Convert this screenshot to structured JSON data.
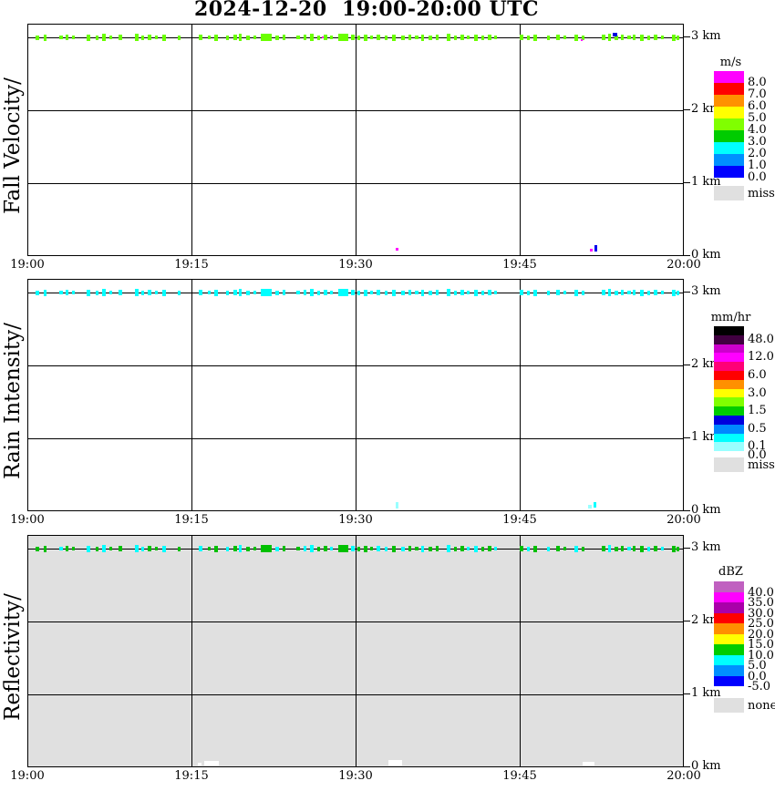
{
  "title": "2024-12-20  19:00-20:00 UTC",
  "axes": {
    "time_ticks": [
      "19:00",
      "19:15",
      "19:30",
      "19:45",
      "20:00"
    ],
    "height_ticks": [
      "3 km",
      "2 km",
      "1 km",
      "0 km"
    ]
  },
  "echo_events": {
    "description": "Intermittent echo marks drawn on the 3 km height line of every panel; format [x_px_from_plot_left, width_px, height_px]; plot width 720 px spans 19:00-20:00 UTC",
    "items": [
      [
        8,
        4,
        5
      ],
      [
        17,
        3,
        7
      ],
      [
        34,
        4,
        4
      ],
      [
        41,
        3,
        6
      ],
      [
        48,
        3,
        4
      ],
      [
        64,
        4,
        7
      ],
      [
        74,
        3,
        5
      ],
      [
        81,
        4,
        8
      ],
      [
        89,
        3,
        4
      ],
      [
        99,
        4,
        6
      ],
      [
        117,
        4,
        8
      ],
      [
        124,
        3,
        5
      ],
      [
        131,
        4,
        6
      ],
      [
        139,
        3,
        4
      ],
      [
        147,
        4,
        7
      ],
      [
        164,
        3,
        5
      ],
      [
        187,
        4,
        6
      ],
      [
        197,
        3,
        4
      ],
      [
        204,
        4,
        7
      ],
      [
        217,
        3,
        5
      ],
      [
        225,
        4,
        6
      ],
      [
        231,
        3,
        8
      ],
      [
        239,
        4,
        5
      ],
      [
        247,
        3,
        4
      ],
      [
        255,
        12,
        8
      ],
      [
        271,
        4,
        5
      ],
      [
        279,
        3,
        6
      ],
      [
        294,
        4,
        4
      ],
      [
        302,
        3,
        6
      ],
      [
        309,
        4,
        8
      ],
      [
        317,
        3,
        5
      ],
      [
        324,
        4,
        6
      ],
      [
        331,
        3,
        4
      ],
      [
        340,
        11,
        8
      ],
      [
        354,
        4,
        6
      ],
      [
        361,
        3,
        5
      ],
      [
        368,
        4,
        7
      ],
      [
        375,
        3,
        4
      ],
      [
        382,
        4,
        6
      ],
      [
        391,
        3,
        5
      ],
      [
        399,
        4,
        7
      ],
      [
        409,
        4,
        5
      ],
      [
        417,
        3,
        6
      ],
      [
        424,
        4,
        4
      ],
      [
        431,
        3,
        7
      ],
      [
        439,
        4,
        5
      ],
      [
        447,
        3,
        6
      ],
      [
        459,
        4,
        8
      ],
      [
        467,
        3,
        5
      ],
      [
        474,
        4,
        6
      ],
      [
        481,
        3,
        4
      ],
      [
        489,
        4,
        7
      ],
      [
        497,
        3,
        5
      ],
      [
        504,
        4,
        6
      ],
      [
        511,
        3,
        4
      ],
      [
        539,
        4,
        6
      ],
      [
        547,
        3,
        5
      ],
      [
        554,
        4,
        7
      ],
      [
        569,
        3,
        5
      ],
      [
        579,
        4,
        6
      ],
      [
        587,
        3,
        4
      ],
      [
        599,
        4,
        7
      ],
      [
        607,
        3,
        5
      ],
      [
        629,
        4,
        6
      ],
      [
        636,
        3,
        8
      ],
      [
        643,
        4,
        5
      ],
      [
        650,
        3,
        6
      ],
      [
        657,
        4,
        4
      ],
      [
        663,
        3,
        6
      ],
      [
        671,
        4,
        7
      ],
      [
        679,
        3,
        5
      ],
      [
        686,
        4,
        6
      ],
      [
        694,
        3,
        4
      ],
      [
        706,
        4,
        7
      ],
      [
        711,
        3,
        5
      ]
    ]
  },
  "chart_data": [
    {
      "type": "heatmap",
      "title": "Fall Velocity",
      "ylabel_text": "Fall Velocity/",
      "unit": "m/s",
      "background": "#ffffff",
      "x_range": [
        "19:00",
        "20:00"
      ],
      "y_range_km": [
        0,
        3.2
      ],
      "data_summary": "Scattered intermittent echoes only at the 3 km level, fall velocity ~4-5 m/s (yellow-green); one blue (~1 m/s) and two magenta pixels; isolated magenta/blue pixels near 0 km at ~19:33 and ~19:51; everything else missing",
      "echo_color": "#6aff00",
      "events_ref": "echo_events",
      "extra_specks": [
        [
          322,
          2,
          2,
          0,
          "#ff00ff"
        ],
        [
          606,
          2,
          2,
          3,
          "#ff00ff"
        ],
        [
          641,
          5,
          4,
          -3,
          "#0000dd"
        ]
      ],
      "bottom_specks": [
        [
          403,
          3,
          3,
          245,
          "#ff00ff"
        ],
        [
          616,
          3,
          3,
          246,
          "#ff00ff"
        ],
        [
          621,
          3,
          7,
          242,
          "#0000ee"
        ]
      ],
      "colorbar": {
        "unit": "m/s",
        "segments": [
          {
            "color": "#ff00ff",
            "label": "8.0"
          },
          {
            "color": "#ff0000",
            "label": "7.0"
          },
          {
            "color": "#ff9000",
            "label": "6.0"
          },
          {
            "color": "#ffff00",
            "label": "5.0"
          },
          {
            "color": "#80ff00",
            "label": "4.0"
          },
          {
            "color": "#00cc00",
            "label": "3.0"
          },
          {
            "color": "#00ffff",
            "label": "2.0"
          },
          {
            "color": "#0090ff",
            "label": "1.0"
          },
          {
            "color": "#0000ff",
            "label": "0.0"
          }
        ],
        "footer": {
          "label": "miss",
          "color": "#e0e0e0"
        }
      }
    },
    {
      "type": "heatmap",
      "title": "Rain Intensity",
      "ylabel_text": "Rain Intensity/",
      "unit": "mm/hr",
      "background": "#ffffff",
      "x_range": [
        "19:00",
        "20:00"
      ],
      "y_range_km": [
        0,
        3.2
      ],
      "data_summary": "Same intermittent echoes at 3 km, rain intensity ~0.1-0.5 mm/hr (cyan); faint pale-cyan pixels near 0 km at ~19:33 and ~19:51; everything else missing",
      "echo_color": "#00ffff",
      "events_ref": "echo_events",
      "extra_specks": [],
      "bottom_specks": [
        [
          403,
          3,
          7,
          244,
          "#99ffff"
        ],
        [
          614,
          4,
          4,
          247,
          "#99ffff"
        ],
        [
          620,
          3,
          6,
          244,
          "#00ffff"
        ]
      ],
      "colorbar": {
        "unit": "mm/hr",
        "segments": [
          {
            "color": "#000000",
            "label": "48.0"
          },
          {
            "color": "#400040",
            "label": null
          },
          {
            "color": "#cc00cc",
            "label": "12.0"
          },
          {
            "color": "#ff00ff",
            "label": null
          },
          {
            "color": "#ff0077",
            "label": "6.0"
          },
          {
            "color": "#ff0000",
            "label": null
          },
          {
            "color": "#ff9000",
            "label": "3.0"
          },
          {
            "color": "#ffff00",
            "label": null
          },
          {
            "color": "#80ff00",
            "label": "1.5"
          },
          {
            "color": "#00cc00",
            "label": null
          },
          {
            "color": "#0000dd",
            "label": "0.5"
          },
          {
            "color": "#0088ff",
            "label": null
          },
          {
            "color": "#00ffff",
            "label": "0.1"
          },
          {
            "color": "#99ffff",
            "label": "0.0"
          }
        ],
        "footer": {
          "label": "miss",
          "color": "#e0e0e0"
        }
      }
    },
    {
      "type": "heatmap",
      "title": "Reflectivity",
      "ylabel_text": "Reflectivity/",
      "unit": "dBZ",
      "background": "#e0e0e0",
      "x_range": [
        "19:00",
        "20:00"
      ],
      "y_range_km": [
        0,
        3.2
      ],
      "data_summary": "Same intermittent echoes at 3 km with reflectivity ~5-15 dBZ (green and cyan marks) on a gray 'none' background; small white gaps near 0 km at ~19:17, ~19:33 and ~19:51",
      "echo_color": "#00c000",
      "echo_color_alt": "#00ffff",
      "events_ref": "echo_events",
      "color_pattern": "ggcggcgcggccggcgcggcgcgggcggccggcgcgggccgcggcggcggccggcgcgcggcggcggcggcgcgg",
      "extra_specks": [],
      "bottom_specks": [
        [
          193,
          16,
          5,
          247,
          "#ffffff"
        ],
        [
          186,
          4,
          3,
          249,
          "#ffffff"
        ],
        [
          395,
          15,
          6,
          246,
          "#ffffff"
        ],
        [
          608,
          13,
          4,
          248,
          "#ffffff"
        ]
      ],
      "colorbar": {
        "unit": "dBZ",
        "segments": [
          {
            "color": "#c060c0",
            "label": "40.0"
          },
          {
            "color": "#ff00ff",
            "label": "35.0"
          },
          {
            "color": "#aa00aa",
            "label": "30.0"
          },
          {
            "color": "#ff0000",
            "label": "25.0"
          },
          {
            "color": "#ff9000",
            "label": "20.0"
          },
          {
            "color": "#ffff00",
            "label": "15.0"
          },
          {
            "color": "#00cc00",
            "label": "10.0"
          },
          {
            "color": "#00ffff",
            "label": "5.0"
          },
          {
            "color": "#0090ff",
            "label": "0.0"
          },
          {
            "color": "#0000ff",
            "label": "-5.0"
          }
        ],
        "footer": {
          "label": "none",
          "color": "#e0e0e0"
        }
      }
    }
  ]
}
